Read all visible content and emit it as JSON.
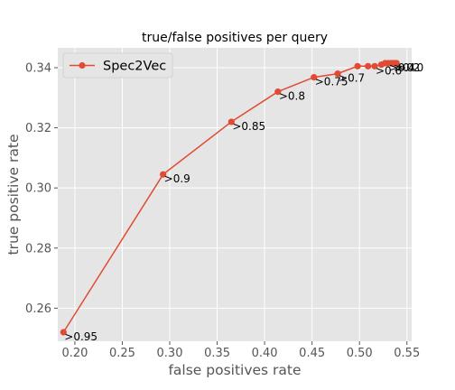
{
  "chart_data": {
    "type": "line",
    "title": "true/false positives per query",
    "xlabel": "false positives rate",
    "ylabel": "true positive rate",
    "xlim": [
      0.182,
      0.555
    ],
    "ylim": [
      0.249,
      0.3466
    ],
    "xticks": [
      0.2,
      0.25,
      0.3,
      0.35,
      0.4,
      0.45,
      0.5,
      0.55
    ],
    "xtick_labels": [
      "0.20",
      "0.25",
      "0.30",
      "0.35",
      "0.40",
      "0.45",
      "0.50",
      "0.55"
    ],
    "yticks": [
      0.26,
      0.28,
      0.3,
      0.32,
      0.34
    ],
    "ytick_labels": [
      "0.26",
      "0.28",
      "0.30",
      "0.32",
      "0.34"
    ],
    "grid": true,
    "legend_position": "upper-left",
    "colors": {
      "line": "#E24A33",
      "plot_bg": "#E5E5E5",
      "grid": "#FFFFFF",
      "text": "#555555"
    },
    "series": [
      {
        "name": "Spec2Vec",
        "points": [
          {
            "x": 0.188,
            "y": 0.252,
            "label": ">0.95"
          },
          {
            "x": 0.293,
            "y": 0.3045,
            "label": ">0.9"
          },
          {
            "x": 0.365,
            "y": 0.322,
            "label": ">0.85"
          },
          {
            "x": 0.414,
            "y": 0.332,
            "label": ">0.8"
          },
          {
            "x": 0.452,
            "y": 0.3368,
            "label": ">0.75"
          },
          {
            "x": 0.477,
            "y": 0.338,
            "label": ">0.7"
          },
          {
            "x": 0.498,
            "y": 0.3405,
            "label": ""
          },
          {
            "x": 0.509,
            "y": 0.3405,
            "label": ""
          },
          {
            "x": 0.516,
            "y": 0.3405,
            "label": ">0.6"
          },
          {
            "x": 0.523,
            "y": 0.341,
            "label": ""
          },
          {
            "x": 0.527,
            "y": 0.3415,
            "label": ""
          },
          {
            "x": 0.53,
            "y": 0.3415,
            "label": ">0.4"
          },
          {
            "x": 0.533,
            "y": 0.3415,
            "label": ""
          },
          {
            "x": 0.535,
            "y": 0.3415,
            "label": ">0.2"
          },
          {
            "x": 0.537,
            "y": 0.3415,
            "label": ""
          },
          {
            "x": 0.539,
            "y": 0.3415,
            "label": ">0.0"
          }
        ]
      }
    ]
  }
}
